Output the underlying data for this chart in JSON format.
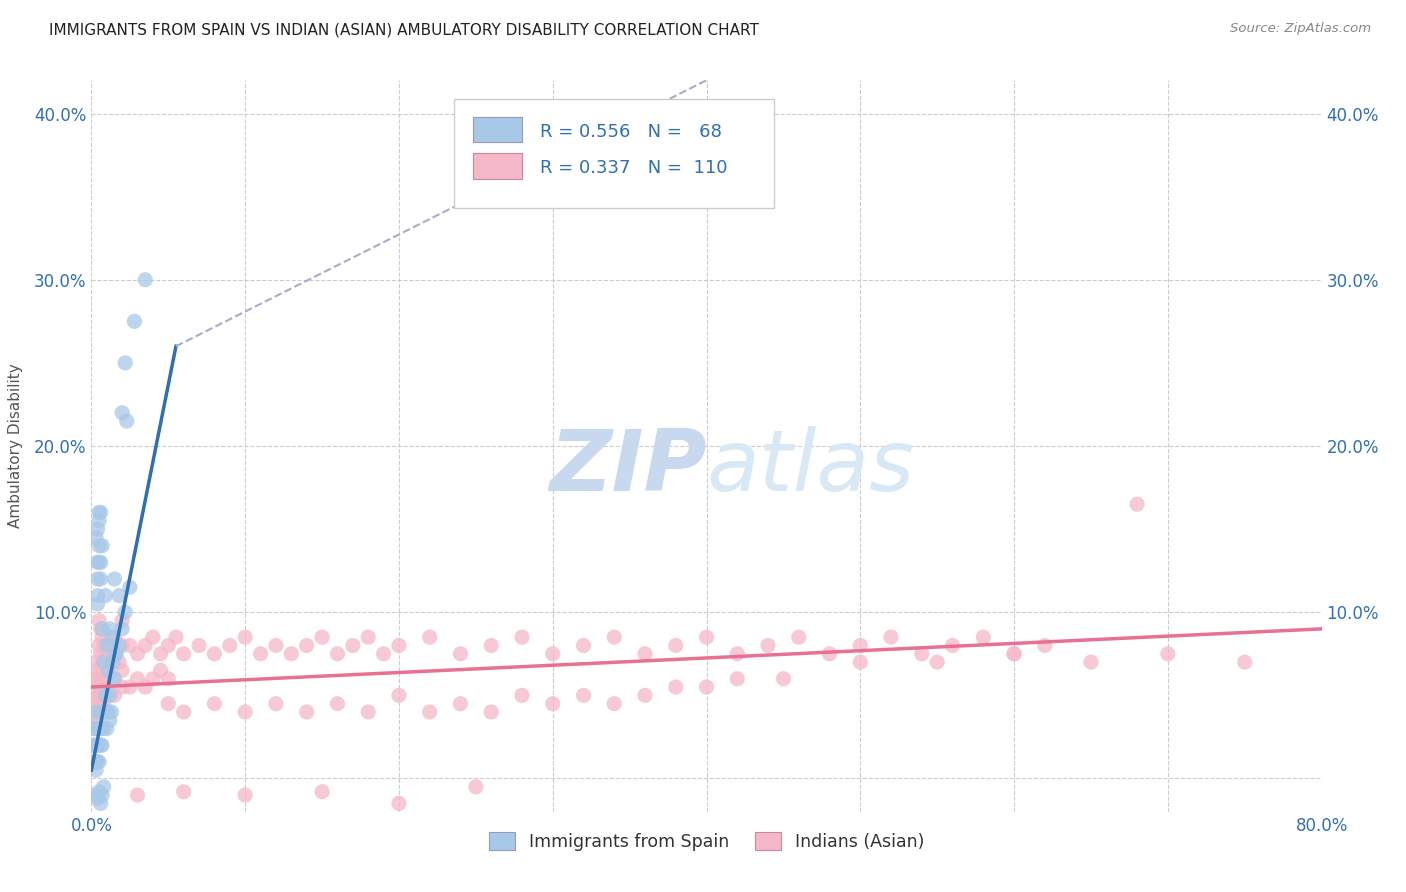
{
  "title": "IMMIGRANTS FROM SPAIN VS INDIAN (ASIAN) AMBULATORY DISABILITY CORRELATION CHART",
  "source": "Source: ZipAtlas.com",
  "ylabel": "Ambulatory Disability",
  "xlim": [
    0.0,
    80.0
  ],
  "ylim": [
    -2.0,
    42.0
  ],
  "yticks": [
    0.0,
    10.0,
    20.0,
    30.0,
    40.0
  ],
  "ytick_labels_left": [
    "",
    "10.0%",
    "20.0%",
    "30.0%",
    "40.0%"
  ],
  "ytick_labels_right": [
    "",
    "10.0%",
    "20.0%",
    "30.0%",
    "40.0%"
  ],
  "xticks": [
    0.0,
    10.0,
    20.0,
    30.0,
    40.0,
    50.0,
    60.0,
    70.0,
    80.0
  ],
  "xtick_labels": [
    "0.0%",
    "",
    "",
    "",
    "",
    "",
    "",
    "",
    "80.0%"
  ],
  "spain_R": 0.556,
  "spain_N": 68,
  "india_R": 0.337,
  "india_N": 110,
  "spain_color": "#a8c8e8",
  "india_color": "#f5b8c8",
  "spain_line_color": "#3070b0",
  "india_line_color": "#e87090",
  "spain_trendline": [
    [
      0.0,
      0.5
    ],
    [
      5.5,
      26.0
    ]
  ],
  "spain_trendline_ext": [
    [
      5.5,
      26.0
    ],
    [
      40.0,
      42.0
    ]
  ],
  "india_trendline": [
    [
      0.0,
      5.5
    ],
    [
      80.0,
      9.0
    ]
  ],
  "bg_color": "#ffffff",
  "grid_color": "#cccccc",
  "title_color": "#222222",
  "axis_label_color": "#555555",
  "tick_label_color": "#3070b0",
  "watermark_color": "#d0dff0",
  "spain_scatter": [
    [
      0.3,
      14.5
    ],
    [
      0.4,
      10.5
    ],
    [
      0.4,
      11.0
    ],
    [
      0.4,
      12.0
    ],
    [
      0.4,
      13.0
    ],
    [
      0.4,
      15.0
    ],
    [
      0.5,
      16.0
    ],
    [
      0.5,
      13.0
    ],
    [
      0.5,
      14.0
    ],
    [
      0.5,
      15.5
    ],
    [
      0.6,
      16.0
    ],
    [
      0.6,
      13.0
    ],
    [
      0.6,
      12.0
    ],
    [
      0.7,
      14.0
    ],
    [
      0.7,
      9.0
    ],
    [
      0.8,
      7.0
    ],
    [
      0.9,
      11.0
    ],
    [
      1.0,
      8.0
    ],
    [
      1.1,
      6.5
    ],
    [
      1.2,
      9.0
    ],
    [
      1.3,
      8.5
    ],
    [
      1.4,
      7.0
    ],
    [
      1.5,
      12.0
    ],
    [
      1.6,
      7.5
    ],
    [
      1.8,
      11.0
    ],
    [
      2.0,
      22.0
    ],
    [
      2.2,
      25.0
    ],
    [
      2.3,
      21.5
    ],
    [
      2.8,
      27.5
    ],
    [
      3.5,
      30.0
    ],
    [
      0.1,
      1.0
    ],
    [
      0.1,
      2.0
    ],
    [
      0.2,
      1.0
    ],
    [
      0.2,
      2.0
    ],
    [
      0.2,
      3.0
    ],
    [
      0.3,
      1.0
    ],
    [
      0.3,
      2.0
    ],
    [
      0.3,
      3.0
    ],
    [
      0.3,
      4.0
    ],
    [
      0.3,
      0.5
    ],
    [
      0.4,
      1.0
    ],
    [
      0.4,
      2.0
    ],
    [
      0.4,
      3.0
    ],
    [
      0.5,
      2.0
    ],
    [
      0.5,
      1.0
    ],
    [
      0.6,
      2.0
    ],
    [
      0.6,
      3.0
    ],
    [
      0.7,
      2.0
    ],
    [
      0.7,
      4.0
    ],
    [
      0.8,
      3.0
    ],
    [
      0.9,
      5.0
    ],
    [
      1.0,
      4.0
    ],
    [
      1.0,
      3.0
    ],
    [
      1.1,
      4.0
    ],
    [
      1.2,
      5.0
    ],
    [
      1.2,
      3.5
    ],
    [
      1.3,
      4.0
    ],
    [
      1.5,
      6.0
    ],
    [
      1.6,
      7.5
    ],
    [
      1.8,
      8.0
    ],
    [
      2.0,
      9.0
    ],
    [
      2.2,
      10.0
    ],
    [
      2.5,
      11.5
    ],
    [
      0.3,
      -1.0
    ],
    [
      0.4,
      -1.2
    ],
    [
      0.5,
      -0.8
    ],
    [
      0.6,
      -1.5
    ],
    [
      0.7,
      -1.0
    ],
    [
      0.8,
      -0.5
    ]
  ],
  "india_scatter": [
    [
      0.5,
      9.5
    ],
    [
      0.5,
      8.0
    ],
    [
      0.6,
      9.0
    ],
    [
      0.6,
      7.5
    ],
    [
      0.7,
      8.5
    ],
    [
      0.7,
      7.0
    ],
    [
      0.8,
      8.0
    ],
    [
      0.9,
      7.5
    ],
    [
      1.0,
      8.0
    ],
    [
      1.0,
      7.0
    ],
    [
      1.2,
      7.5
    ],
    [
      1.3,
      8.0
    ],
    [
      1.5,
      7.5
    ],
    [
      1.5,
      8.5
    ],
    [
      1.8,
      7.0
    ],
    [
      2.0,
      8.0
    ],
    [
      2.0,
      9.5
    ],
    [
      2.5,
      8.0
    ],
    [
      3.0,
      7.5
    ],
    [
      3.5,
      8.0
    ],
    [
      4.0,
      8.5
    ],
    [
      4.5,
      7.5
    ],
    [
      5.0,
      8.0
    ],
    [
      5.5,
      8.5
    ],
    [
      6.0,
      7.5
    ],
    [
      7.0,
      8.0
    ],
    [
      8.0,
      7.5
    ],
    [
      9.0,
      8.0
    ],
    [
      10.0,
      8.5
    ],
    [
      11.0,
      7.5
    ],
    [
      12.0,
      8.0
    ],
    [
      13.0,
      7.5
    ],
    [
      14.0,
      8.0
    ],
    [
      15.0,
      8.5
    ],
    [
      16.0,
      7.5
    ],
    [
      17.0,
      8.0
    ],
    [
      18.0,
      8.5
    ],
    [
      19.0,
      7.5
    ],
    [
      20.0,
      8.0
    ],
    [
      22.0,
      8.5
    ],
    [
      24.0,
      7.5
    ],
    [
      26.0,
      8.0
    ],
    [
      28.0,
      8.5
    ],
    [
      30.0,
      7.5
    ],
    [
      32.0,
      8.0
    ],
    [
      34.0,
      8.5
    ],
    [
      36.0,
      7.5
    ],
    [
      38.0,
      8.0
    ],
    [
      40.0,
      8.5
    ],
    [
      42.0,
      7.5
    ],
    [
      44.0,
      8.0
    ],
    [
      46.0,
      8.5
    ],
    [
      48.0,
      7.5
    ],
    [
      50.0,
      8.0
    ],
    [
      52.0,
      8.5
    ],
    [
      54.0,
      7.5
    ],
    [
      56.0,
      8.0
    ],
    [
      58.0,
      8.5
    ],
    [
      60.0,
      7.5
    ],
    [
      62.0,
      8.0
    ],
    [
      5.0,
      4.5
    ],
    [
      6.0,
      4.0
    ],
    [
      8.0,
      4.5
    ],
    [
      10.0,
      4.0
    ],
    [
      12.0,
      4.5
    ],
    [
      14.0,
      4.0
    ],
    [
      16.0,
      4.5
    ],
    [
      18.0,
      4.0
    ],
    [
      20.0,
      5.0
    ],
    [
      22.0,
      4.0
    ],
    [
      24.0,
      4.5
    ],
    [
      26.0,
      4.0
    ],
    [
      28.0,
      5.0
    ],
    [
      30.0,
      4.5
    ],
    [
      32.0,
      5.0
    ],
    [
      34.0,
      4.5
    ],
    [
      36.0,
      5.0
    ],
    [
      38.0,
      5.5
    ],
    [
      40.0,
      5.5
    ],
    [
      42.0,
      6.0
    ],
    [
      45.0,
      6.0
    ],
    [
      50.0,
      7.0
    ],
    [
      55.0,
      7.0
    ],
    [
      60.0,
      7.5
    ],
    [
      65.0,
      7.0
    ],
    [
      70.0,
      7.5
    ],
    [
      75.0,
      7.0
    ],
    [
      3.0,
      -1.0
    ],
    [
      6.0,
      -0.8
    ],
    [
      10.0,
      -1.0
    ],
    [
      15.0,
      -0.8
    ],
    [
      20.0,
      -1.5
    ],
    [
      25.0,
      -0.5
    ],
    [
      0.3,
      5.5
    ],
    [
      0.3,
      6.0
    ],
    [
      0.4,
      5.0
    ],
    [
      0.4,
      6.5
    ],
    [
      0.5,
      5.5
    ],
    [
      0.6,
      6.0
    ],
    [
      0.7,
      6.5
    ],
    [
      0.8,
      5.5
    ],
    [
      1.0,
      6.0
    ],
    [
      1.2,
      5.5
    ],
    [
      1.5,
      6.0
    ],
    [
      2.0,
      6.5
    ],
    [
      2.5,
      5.5
    ],
    [
      3.0,
      6.0
    ],
    [
      3.5,
      5.5
    ],
    [
      4.0,
      6.0
    ],
    [
      4.5,
      6.5
    ],
    [
      5.0,
      6.0
    ],
    [
      0.3,
      4.0
    ],
    [
      0.4,
      4.5
    ],
    [
      0.5,
      4.0
    ],
    [
      0.6,
      4.5
    ],
    [
      0.7,
      4.0
    ],
    [
      0.8,
      4.5
    ],
    [
      1.0,
      5.0
    ],
    [
      1.5,
      5.0
    ],
    [
      2.0,
      5.5
    ],
    [
      68.0,
      16.5
    ],
    [
      0.2,
      5.0
    ],
    [
      0.2,
      6.0
    ],
    [
      0.3,
      7.0
    ],
    [
      0.2,
      3.5
    ],
    [
      0.3,
      3.5
    ],
    [
      0.2,
      4.0
    ],
    [
      0.4,
      3.0
    ]
  ]
}
